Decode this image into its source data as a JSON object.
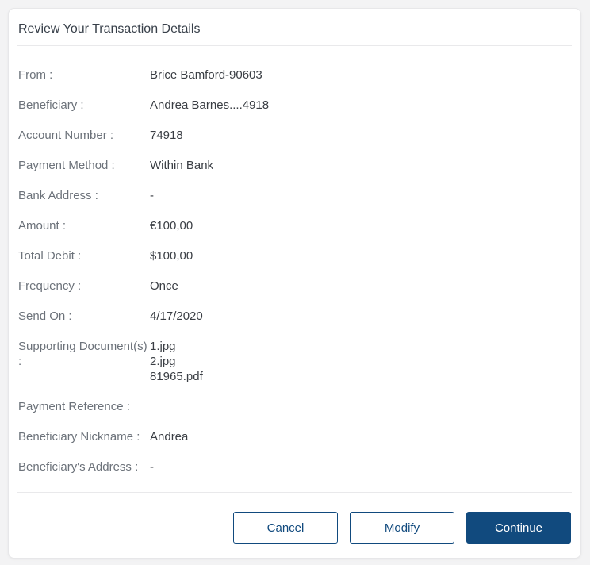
{
  "header": {
    "title": "Review Your Transaction Details"
  },
  "colors": {
    "primary": "#114a7e",
    "page_background": "#f3f3f4",
    "card_background": "#ffffff",
    "label_text": "#6c727a",
    "value_text": "#3a3e44",
    "divider": "#e9e9eb"
  },
  "fields": [
    {
      "label": "From :",
      "value": "Brice Bamford-90603"
    },
    {
      "label": "Beneficiary :",
      "value": "Andrea Barnes....4918"
    },
    {
      "label": "Account Number :",
      "value": "74918"
    },
    {
      "label": "Payment Method :",
      "value": "Within Bank"
    },
    {
      "label": "Bank Address :",
      "value": "-"
    },
    {
      "label": "Amount :",
      "value": "€100,00"
    },
    {
      "label": "Total Debit :",
      "value": "$100,00"
    },
    {
      "label": "Frequency :",
      "value": "Once"
    },
    {
      "label": "Send On :",
      "value": "4/17/2020"
    },
    {
      "label": "Supporting Document(s) :",
      "value": "1.jpg\n2.jpg\n81965.pdf"
    },
    {
      "label": "Payment Reference :",
      "value": ""
    },
    {
      "label": "Beneficiary Nickname :",
      "value": "Andrea"
    },
    {
      "label": "Beneficiary's Address :",
      "value": "-"
    }
  ],
  "footer": {
    "cancel_label": "Cancel",
    "modify_label": "Modify",
    "continue_label": "Continue"
  }
}
